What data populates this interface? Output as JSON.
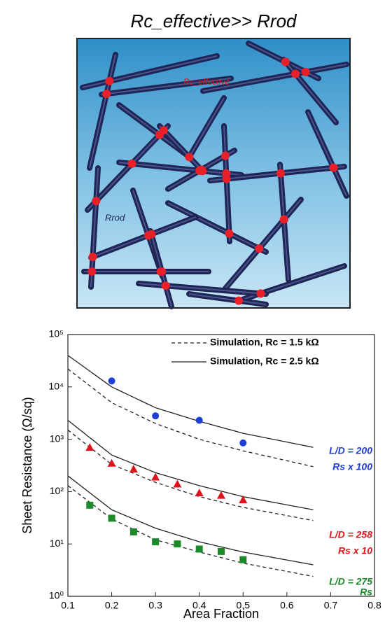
{
  "diagram": {
    "title": "Rc_effective>> Rrod",
    "contact_label": "Rc_effective",
    "rod_label": "Rrod"
  },
  "chart_data": {
    "type": "scatter-line",
    "xlabel": "Area Fraction",
    "ylabel": "Sheet Resistance (Ω/sq)",
    "xlim": [
      0.1,
      0.8
    ],
    "xticks": [
      0.1,
      0.2,
      0.3,
      0.4,
      0.5,
      0.6,
      0.7,
      0.8
    ],
    "ylim": [
      1,
      100000
    ],
    "log_y": true,
    "yticks": [
      {
        "value": 1,
        "label": "10⁰"
      },
      {
        "value": 10,
        "label": "10¹"
      },
      {
        "value": 100,
        "label": "10²"
      },
      {
        "value": 1000,
        "label": "10³"
      },
      {
        "value": 10000,
        "label": "10⁴"
      },
      {
        "value": 100000,
        "label": "10⁵"
      }
    ],
    "legend_position": "upper right",
    "legend": [
      {
        "label": "Simulation, Rc = 1.5 kΩ",
        "dash": true
      },
      {
        "label": "Simulation, Rc = 2.5 kΩ",
        "dash": false
      }
    ],
    "curves": [
      {
        "dash": false,
        "x": [
          0.1,
          0.2,
          0.3,
          0.4,
          0.5,
          0.66
        ],
        "values": [
          40000,
          10000,
          4000,
          2200,
          1300,
          700
        ]
      },
      {
        "dash": true,
        "x": [
          0.1,
          0.2,
          0.3,
          0.4,
          0.5,
          0.66
        ],
        "values": [
          22000,
          5000,
          2000,
          1000,
          600,
          300
        ]
      },
      {
        "dash": false,
        "x": [
          0.1,
          0.2,
          0.3,
          0.4,
          0.5,
          0.66
        ],
        "values": [
          2300,
          500,
          230,
          130,
          80,
          45
        ]
      },
      {
        "dash": true,
        "x": [
          0.1,
          0.2,
          0.3,
          0.4,
          0.5,
          0.66
        ],
        "values": [
          1500,
          330,
          150,
          80,
          50,
          28
        ]
      },
      {
        "dash": false,
        "x": [
          0.1,
          0.2,
          0.3,
          0.4,
          0.5,
          0.66
        ],
        "values": [
          200,
          45,
          20,
          11,
          7,
          4
        ]
      },
      {
        "dash": true,
        "x": [
          0.1,
          0.2,
          0.3,
          0.4,
          0.5,
          0.66
        ],
        "values": [
          130,
          30,
          12,
          7,
          4.3,
          2.4
        ]
      }
    ],
    "series": [
      {
        "color": "#1f3fd6",
        "marker": "circle",
        "x": [
          0.2,
          0.3,
          0.4,
          0.5
        ],
        "values": [
          13000,
          2800,
          2300,
          850
        ]
      },
      {
        "color": "#e0151b",
        "marker": "triangle",
        "x": [
          0.15,
          0.2,
          0.25,
          0.3,
          0.35,
          0.4,
          0.45,
          0.5
        ],
        "values": [
          700,
          350,
          270,
          190,
          140,
          95,
          85,
          70
        ]
      },
      {
        "color": "#1d8a2a",
        "marker": "square",
        "x": [
          0.15,
          0.2,
          0.25,
          0.3,
          0.35,
          0.4,
          0.45,
          0.5
        ],
        "values": [
          55,
          31,
          17,
          11,
          10,
          8,
          7.2,
          5
        ]
      }
    ],
    "annotations": [
      {
        "text": "L/D = 200",
        "color": "#1f3fd6"
      },
      {
        "text": "Rs x 100",
        "color": "#1f3fd6"
      },
      {
        "text": "L/D = 258",
        "color": "#e0151b"
      },
      {
        "text": "Rs x 10",
        "color": "#e0151b"
      },
      {
        "text": "L/D = 275",
        "color": "#1d8a2a"
      },
      {
        "text": "Rs",
        "color": "#1d8a2a"
      }
    ]
  }
}
